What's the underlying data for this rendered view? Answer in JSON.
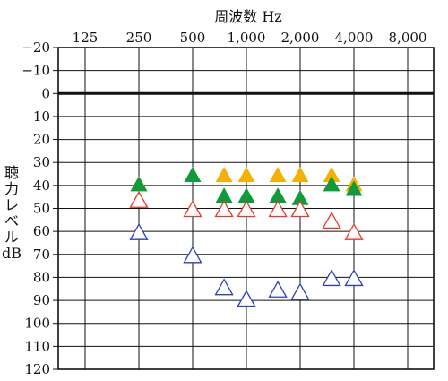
{
  "chart_data": {
    "type": "scatter",
    "title": "",
    "xlabel": "周波数 Hz",
    "ylabel_lines": [
      "聴",
      "力",
      "レ",
      "ベ",
      "ル",
      "dB"
    ],
    "x_categories": [
      125,
      250,
      500,
      1000,
      2000,
      4000,
      8000
    ],
    "x_tick_labels": [
      "125",
      "250",
      "500",
      "1,000",
      "2,000",
      "4,000",
      "8,000"
    ],
    "y_ticks": [
      -20,
      -10,
      0,
      10,
      20,
      30,
      40,
      50,
      60,
      70,
      80,
      90,
      100,
      110,
      120
    ],
    "y_tick_labels": [
      "−20",
      "−10",
      "0",
      "10",
      "20",
      "30",
      "40",
      "50",
      "60",
      "70",
      "80",
      "90",
      "100",
      "110",
      "120"
    ],
    "ylim": [
      -20,
      120
    ],
    "x_scale": "log2",
    "y_inverted": true,
    "grid": true,
    "reference_line": 0,
    "series": [
      {
        "color": "#f5b000",
        "outline": false,
        "points": [
          {
            "x": 250,
            "y": 40
          },
          {
            "x": 500,
            "y": 36
          },
          {
            "x": 750,
            "y": 36
          },
          {
            "x": 1000,
            "y": 36
          },
          {
            "x": 1500,
            "y": 36
          },
          {
            "x": 2000,
            "y": 36
          },
          {
            "x": 3000,
            "y": 36
          },
          {
            "x": 4000,
            "y": 40
          }
        ]
      },
      {
        "color": "#0f9a3c",
        "outline": false,
        "points": [
          {
            "x": 250,
            "y": 40
          },
          {
            "x": 500,
            "y": 36
          },
          {
            "x": 750,
            "y": 45
          },
          {
            "x": 1000,
            "y": 45
          },
          {
            "x": 1500,
            "y": 45
          },
          {
            "x": 2000,
            "y": 46
          },
          {
            "x": 3000,
            "y": 40
          },
          {
            "x": 4000,
            "y": 42
          }
        ]
      },
      {
        "color": "#e5392e",
        "outline": true,
        "points": [
          {
            "x": 250,
            "y": 47
          },
          {
            "x": 500,
            "y": 51
          },
          {
            "x": 750,
            "y": 51
          },
          {
            "x": 1000,
            "y": 51
          },
          {
            "x": 1500,
            "y": 51
          },
          {
            "x": 2000,
            "y": 51
          },
          {
            "x": 3000,
            "y": 56
          },
          {
            "x": 4000,
            "y": 61
          }
        ]
      },
      {
        "color": "#2b3fbf",
        "outline": true,
        "points": [
          {
            "x": 250,
            "y": 61
          },
          {
            "x": 500,
            "y": 71
          },
          {
            "x": 750,
            "y": 85
          },
          {
            "x": 1000,
            "y": 90
          },
          {
            "x": 1500,
            "y": 86
          },
          {
            "x": 2000,
            "y": 87
          },
          {
            "x": 3000,
            "y": 81
          },
          {
            "x": 4000,
            "y": 81
          }
        ]
      }
    ]
  }
}
